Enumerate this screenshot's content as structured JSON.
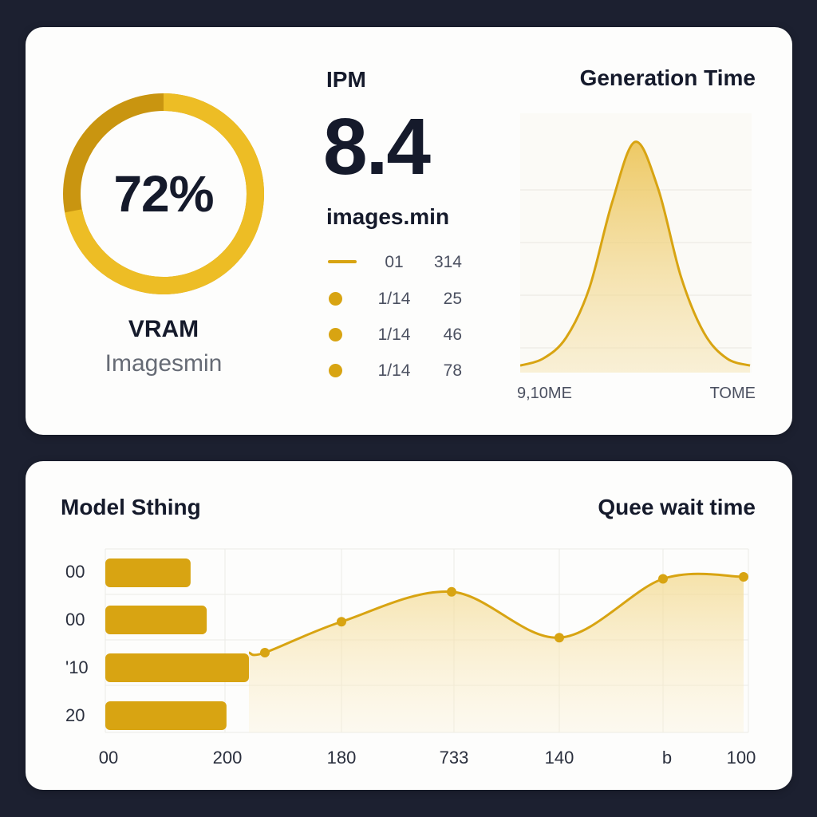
{
  "colors": {
    "accent": "#d8a412",
    "accent_dark": "#c68f0a",
    "accent_light": "#edbd25",
    "background": "#1c2030",
    "card": "#fdfdfc"
  },
  "vram_gauge": {
    "value_text": "72%",
    "fraction": 0.72,
    "label": "VRAM",
    "sublabel": "Imagesmin"
  },
  "ipm": {
    "title": "IPM",
    "value": "8.4",
    "unit": "images.min",
    "legend": [
      {
        "marker": "line",
        "col_a": "01",
        "col_b": "314"
      },
      {
        "marker": "dot",
        "col_a": "1/14",
        "col_b": "25"
      },
      {
        "marker": "dot",
        "col_a": "1/14",
        "col_b": "46"
      },
      {
        "marker": "dot",
        "col_a": "1/14",
        "col_b": "78"
      }
    ]
  },
  "generation_time": {
    "title": "Generation Time",
    "x_start_label": "9,10ME",
    "x_end_label": "TOME"
  },
  "bottom": {
    "model_title": "Model Sthing",
    "queue_title": "Quee wait time"
  },
  "chart_data": [
    {
      "type": "area",
      "title": "Generation Time",
      "shape": "bell curve",
      "x": [
        0,
        1,
        2,
        3,
        4,
        5,
        6,
        7,
        8,
        9,
        10
      ],
      "values": [
        0.02,
        0.05,
        0.14,
        0.35,
        0.72,
        0.98,
        0.78,
        0.4,
        0.16,
        0.05,
        0.02
      ],
      "xlabel_start": "9,10ME",
      "xlabel_end": "TOME",
      "grid": true
    },
    {
      "type": "bar",
      "orientation": "horizontal",
      "title": "Model Sthing",
      "categories": [
        "00",
        "00",
        "'10",
        "20"
      ],
      "values": [
        95,
        113,
        160,
        135
      ],
      "xlim": [
        0,
        200
      ]
    },
    {
      "type": "line",
      "title": "Quee wait time",
      "x_tick_labels": [
        "00",
        "200",
        "180",
        "733",
        "140",
        "b",
        "100"
      ],
      "values": [
        0.2,
        0.51,
        0.81,
        0.35,
        0.94,
        0.96
      ],
      "grid": true,
      "fill": "area"
    }
  ]
}
